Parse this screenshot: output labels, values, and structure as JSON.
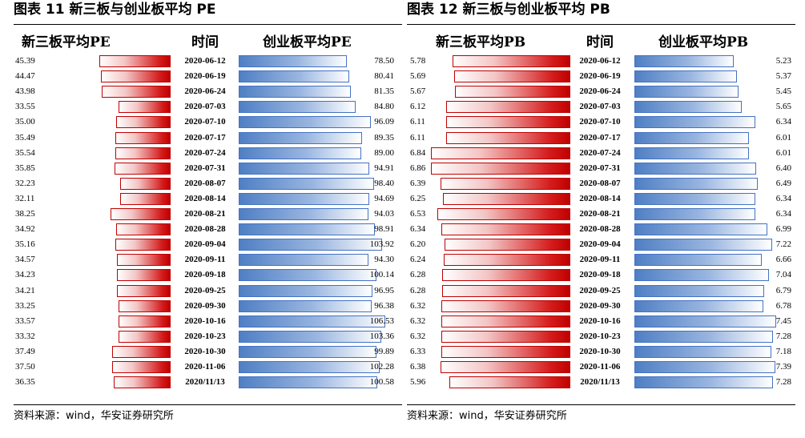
{
  "chart_data": [
    {
      "type": "table",
      "title": "图表 11 新三板与创业板平均 PE",
      "columns": [
        "新三板平均PE",
        "时间",
        "创业板平均PE"
      ],
      "colors": {
        "left": "#c00000",
        "right": "#4472c4"
      },
      "dates": [
        "2020-06-12",
        "2020-06-19",
        "2020-06-24",
        "2020-07-03",
        "2020-07-10",
        "2020-07-17",
        "2020-07-24",
        "2020-07-31",
        "2020-08-07",
        "2020-08-14",
        "2020-08-21",
        "2020-08-28",
        "2020-09-04",
        "2020-09-11",
        "2020-09-18",
        "2020-09-25",
        "2020-09-30",
        "2020-10-16",
        "2020-10-23",
        "2020-10-30",
        "2020-11-06",
        "2020/11/13"
      ],
      "left_values": [
        45.39,
        44.47,
        43.98,
        33.55,
        35.0,
        35.49,
        35.54,
        35.85,
        32.23,
        32.11,
        38.25,
        34.92,
        35.16,
        34.57,
        34.23,
        34.21,
        33.25,
        33.57,
        33.32,
        37.49,
        37.5,
        36.35
      ],
      "right_values": [
        78.5,
        80.41,
        81.35,
        84.8,
        96.09,
        89.35,
        89.0,
        94.91,
        98.4,
        94.69,
        94.03,
        98.91,
        103.92,
        94.3,
        100.14,
        96.95,
        96.38,
        106.53,
        103.36,
        99.89,
        102.28,
        100.58
      ],
      "left_labels": [
        "45.39",
        "44.47",
        "43.98",
        "33.55",
        "35.00",
        "35.49",
        "35.54",
        "35.85",
        "32.23",
        "32.11",
        "38.25",
        "34.92",
        "35.16",
        "34.57",
        "34.23",
        "34.21",
        "33.25",
        "33.57",
        "33.32",
        "37.49",
        "37.50",
        "36.35"
      ],
      "right_labels": [
        "78.50",
        "80.41",
        "81.35",
        "84.80",
        "96.09",
        "89.35",
        "89.00",
        "94.91",
        "98.40",
        "94.69",
        "94.03",
        "98.91",
        "103.92",
        "94.30",
        "100.14",
        "96.95",
        "96.38",
        "106.53",
        "103.36",
        "99.89",
        "102.28",
        "100.58"
      ],
      "source": "资料来源：wind，华安证券研究所"
    },
    {
      "type": "table",
      "title": "图表 12 新三板与创业板平均 PB",
      "columns": [
        "新三板平均PB",
        "时间",
        "创业板平均PB"
      ],
      "colors": {
        "left": "#c00000",
        "right": "#4472c4"
      },
      "dates": [
        "2020-06-12",
        "2020-06-19",
        "2020-06-24",
        "2020-07-03",
        "2020-07-10",
        "2020-07-17",
        "2020-07-24",
        "2020-07-31",
        "2020-08-07",
        "2020-08-14",
        "2020-08-21",
        "2020-08-28",
        "2020-09-04",
        "2020-09-11",
        "2020-09-18",
        "2020-09-25",
        "2020-09-30",
        "2020-10-16",
        "2020-10-23",
        "2020-10-30",
        "2020-11-06",
        "2020/11/13"
      ],
      "left_values": [
        5.78,
        5.69,
        5.67,
        6.12,
        6.11,
        6.11,
        6.84,
        6.86,
        6.39,
        6.25,
        6.53,
        6.34,
        6.2,
        6.24,
        6.28,
        6.28,
        6.32,
        6.32,
        6.32,
        6.33,
        6.38,
        5.96
      ],
      "right_values": [
        5.23,
        5.37,
        5.45,
        5.65,
        6.34,
        6.01,
        6.01,
        6.4,
        6.49,
        6.34,
        6.34,
        6.99,
        7.22,
        6.66,
        7.04,
        6.79,
        6.78,
        7.45,
        7.28,
        7.18,
        7.39,
        7.28
      ],
      "left_labels": [
        "5.78",
        "5.69",
        "5.67",
        "6.12",
        "6.11",
        "6.11",
        "6.84",
        "6.86",
        "6.39",
        "6.25",
        "6.53",
        "6.34",
        "6.20",
        "6.24",
        "6.28",
        "6.28",
        "6.32",
        "6.32",
        "6.32",
        "6.33",
        "6.38",
        "5.96"
      ],
      "right_labels": [
        "5.23",
        "5.37",
        "5.45",
        "5.65",
        "6.34",
        "6.01",
        "6.01",
        "6.40",
        "6.49",
        "6.34",
        "6.34",
        "6.99",
        "7.22",
        "6.66",
        "7.04",
        "6.79",
        "6.78",
        "7.45",
        "7.28",
        "7.18",
        "7.39",
        "7.28"
      ],
      "source": "资料来源：wind，华安证券研究所"
    }
  ]
}
